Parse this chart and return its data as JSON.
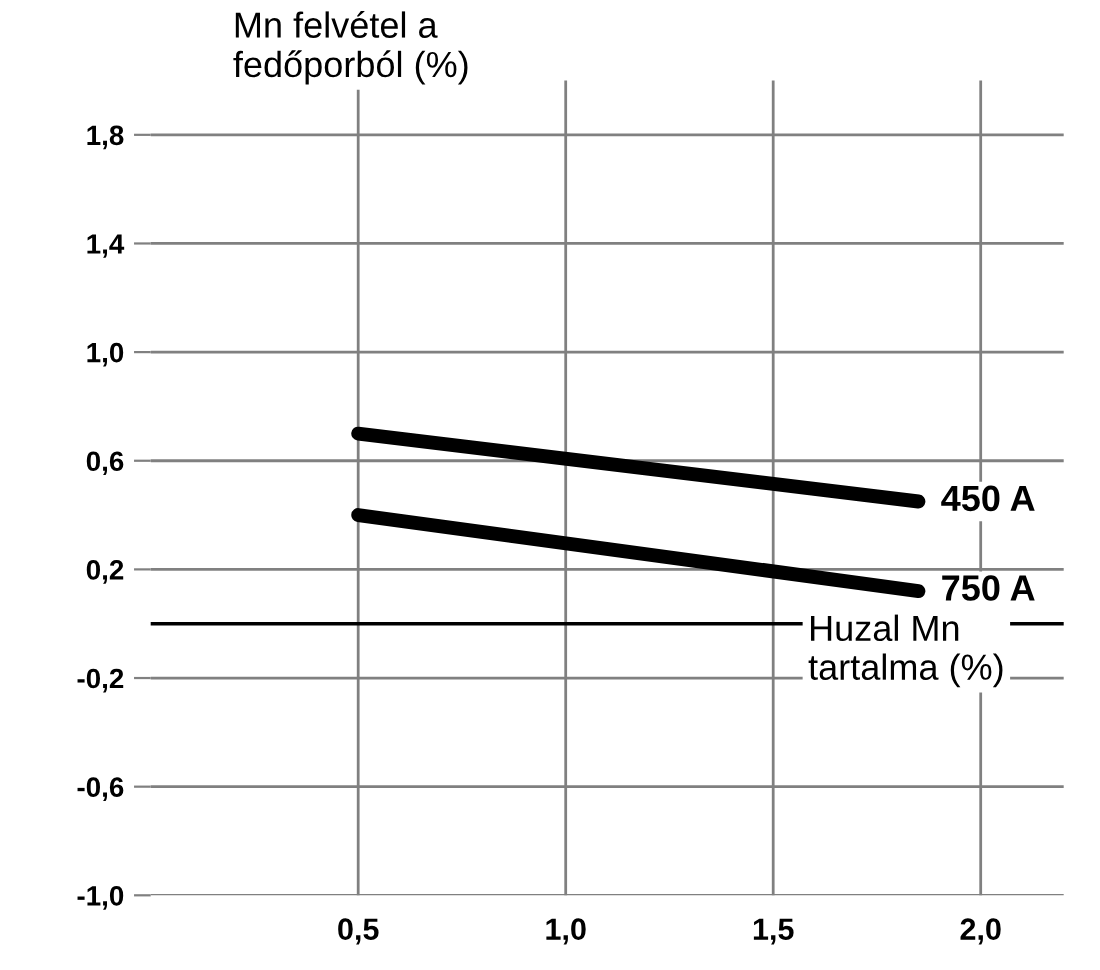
{
  "chart_data": {
    "type": "line",
    "ylabel": "Mn felvétel a\nfedőporból (%)",
    "xlabel": "Huzal Mn\ntartalma (%)",
    "x": [
      0.5,
      1.85
    ],
    "series": [
      {
        "name": "450 A",
        "color": "#000000",
        "values": [
          0.7,
          0.45
        ]
      },
      {
        "name": "750 A",
        "color": "#000000",
        "values": [
          0.4,
          0.12
        ]
      }
    ],
    "xlim": [
      0,
      2.2
    ],
    "ylim": [
      -1.0,
      2.0
    ],
    "xticks": [
      {
        "value": 0.5,
        "label": "0,5"
      },
      {
        "value": 1.0,
        "label": "1,0"
      },
      {
        "value": 1.5,
        "label": "1,5"
      },
      {
        "value": 2.0,
        "label": "2,0"
      }
    ],
    "yticks": [
      {
        "value": -1.0,
        "label": "-1,0"
      },
      {
        "value": -0.6,
        "label": "-0,6"
      },
      {
        "value": -0.2,
        "label": "-0,2"
      },
      {
        "value": 0.2,
        "label": "0,2"
      },
      {
        "value": 0.6,
        "label": "0,6"
      },
      {
        "value": 1.0,
        "label": "1,0"
      },
      {
        "value": 1.4,
        "label": "1,4"
      },
      {
        "value": 1.8,
        "label": "1,8"
      }
    ],
    "ref_lines": [
      {
        "axis": "y",
        "value": 0,
        "color": "#000000"
      }
    ],
    "grid": true,
    "legend": false
  }
}
